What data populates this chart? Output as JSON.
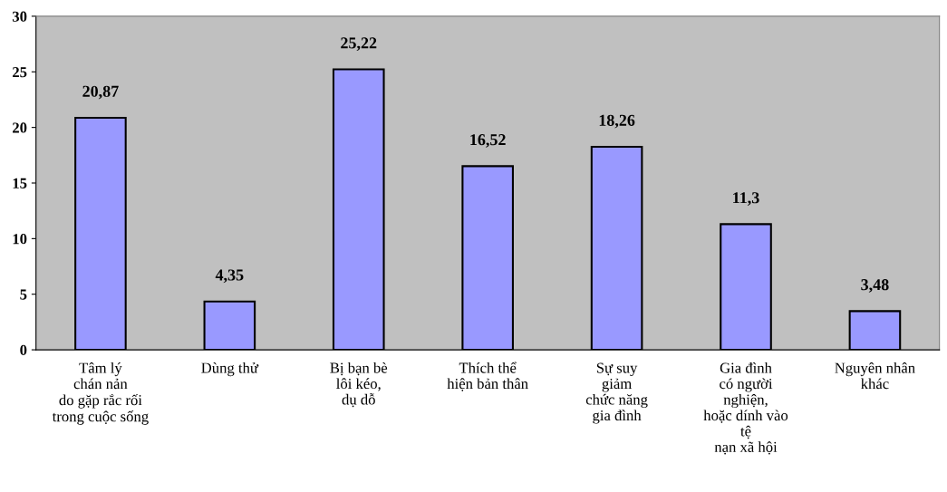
{
  "chart_data": {
    "type": "bar",
    "categories": [
      "Tâm lý\nchán nản\ndo gặp rắc rối\ntrong cuộc sống",
      "Dùng thử",
      "Bị bạn bè\nlôi kéo,\ndụ dỗ",
      "Thích thể\nhiện bản thân",
      "Sự suy\ngiảm\nchức năng\ngia đình",
      "Gia đình\ncó người\nnghiện,\nhoặc dính vào\ntệ\nnạn xã hội",
      "Nguyên nhân\nkhác"
    ],
    "values": [
      20.87,
      4.35,
      25.22,
      16.52,
      18.26,
      11.3,
      3.48
    ],
    "value_labels": [
      "20,87",
      "4,35",
      "25,22",
      "16,52",
      "18,26",
      "11,3",
      "3,48"
    ],
    "color": "#9999ff",
    "ylim": [
      0,
      30
    ],
    "yticks": [
      0,
      5,
      10,
      15,
      20,
      25,
      30
    ],
    "grid": false
  }
}
